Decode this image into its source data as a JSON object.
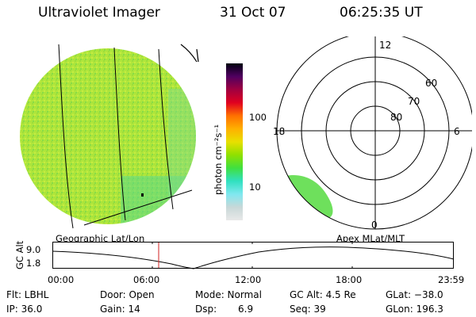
{
  "header": {
    "title": "Ultraviolet Imager",
    "date": "31 Oct 07",
    "time": "06:25:35 UT"
  },
  "colorbar": {
    "unit": "photon cm⁻²s⁻¹",
    "ticks": [
      "100",
      "10"
    ],
    "colors": [
      "#000010",
      "#500060",
      "#a00040",
      "#e00020",
      "#ff7000",
      "#ffb000",
      "#e8e000",
      "#90e000",
      "#40e040",
      "#30e0c0",
      "#80e8f0",
      "#c8d8d8",
      "#e8e8e8"
    ]
  },
  "polar": {
    "mlt_labels": [
      "12",
      "18",
      "6",
      "0"
    ],
    "lat_labels": [
      "60",
      "70",
      "80"
    ]
  },
  "panels": {
    "left_label": "Geographic Lat/Lon",
    "right_label": "Apex MLat/MLT"
  },
  "timeline": {
    "ylabel": "GC Alt",
    "ytop": "9.0",
    "ybottom": "1.8",
    "xticks": [
      "00:00",
      "06:00",
      "12:00",
      "18:00",
      "23:59"
    ],
    "current_time_marker": "06:25"
  },
  "info": {
    "filter": "Flt: LBHL",
    "ip": "IP: 36.0",
    "door": "Door: Open",
    "gain": "Gain: 14",
    "mode": "Mode: Normal",
    "dsp_label": "Dsp:",
    "dsp_value": "6.9",
    "gc_alt": "GC Alt: 4.5 Re",
    "seq": "Seq: 39",
    "glat": "GLat: −38.0",
    "glon": "GLon: 196.3"
  },
  "style": {
    "earth_fill": "#b8e83a",
    "aurora_fill": "#6ee05c"
  }
}
